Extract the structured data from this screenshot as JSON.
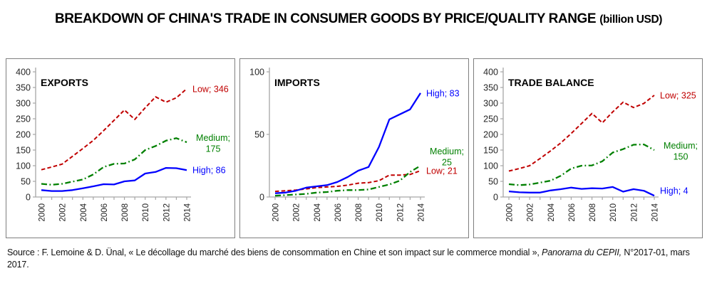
{
  "title": {
    "main": "BREAKDOWN OF CHINA'S TRADE IN CONSUMER GOODS BY PRICE/QUALITY RANGE",
    "unit": "(billion USD)"
  },
  "source": {
    "text1": "Source : F. Lemoine & D. Ünal, « Le décollage du marché des biens de consommation en Chine et son impact sur le commerce mondial », ",
    "italic": "Panorama du CEPII,",
    "text2": " N°2017-01, mars 2017."
  },
  "colors": {
    "low": "#c00000",
    "medium": "#008000",
    "high": "#0000ff",
    "axis": "#a6a6a6",
    "tick_text": "#262626"
  },
  "chart_data": [
    {
      "type": "line",
      "name": "exports",
      "title": "EXPORTS",
      "x": [
        2000,
        2001,
        2002,
        2003,
        2004,
        2005,
        2006,
        2007,
        2008,
        2009,
        2010,
        2011,
        2012,
        2013,
        2014
      ],
      "x_labels": [
        "2000",
        "2002",
        "2004",
        "2006",
        "2008",
        "2010",
        "2012",
        "2014"
      ],
      "ylim": [
        0,
        400
      ],
      "yticks": [
        0,
        50,
        100,
        150,
        200,
        250,
        300,
        350,
        400
      ],
      "grid": false,
      "series": [
        {
          "name": "Low",
          "color": "#c00000",
          "style": "dashed",
          "values": [
            87,
            96,
            105,
            130,
            155,
            181,
            212,
            245,
            278,
            248,
            285,
            320,
            303,
            317,
            346
          ],
          "label_lines": [
            "Low; 346"
          ]
        },
        {
          "name": "Medium",
          "color": "#008000",
          "style": "dashdot",
          "values": [
            42,
            39,
            42,
            49,
            56,
            72,
            96,
            106,
            107,
            120,
            150,
            163,
            180,
            188,
            175
          ],
          "label_lines": [
            "Medium;",
            "175"
          ]
        },
        {
          "name": "High",
          "color": "#0000ff",
          "style": "solid",
          "values": [
            22,
            19,
            19,
            22,
            28,
            34,
            41,
            40,
            50,
            53,
            75,
            80,
            93,
            92,
            86
          ],
          "label_lines": [
            "High; 86"
          ]
        }
      ]
    },
    {
      "type": "line",
      "name": "imports",
      "title": "IMPORTS",
      "x": [
        2000,
        2001,
        2002,
        2003,
        2004,
        2005,
        2006,
        2007,
        2008,
        2009,
        2010,
        2011,
        2012,
        2013,
        2014
      ],
      "x_labels": [
        "2000",
        "2002",
        "2004",
        "2006",
        "2008",
        "2010",
        "2012",
        "2014"
      ],
      "ylim": [
        0,
        100
      ],
      "yticks": [
        0,
        50,
        100
      ],
      "grid": false,
      "series": [
        {
          "name": "Low",
          "color": "#c00000",
          "style": "dashed",
          "values": [
            4.5,
            5,
            5.5,
            6.5,
            7.5,
            8,
            8.5,
            9.5,
            11,
            11.5,
            13,
            17.5,
            17.5,
            18,
            21
          ],
          "label_lines": [
            "Low; 21"
          ]
        },
        {
          "name": "Medium",
          "color": "#008000",
          "style": "dashdot",
          "values": [
            1,
            1.5,
            2,
            2.5,
            3.5,
            4,
            5,
            5.5,
            5.5,
            6,
            8,
            10,
            13,
            20,
            25
          ],
          "label_lines": [
            "Medium;",
            "25"
          ],
          "label_offset": -14
        },
        {
          "name": "High",
          "color": "#0000ff",
          "style": "solid",
          "values": [
            3,
            3.5,
            5,
            7.5,
            8.5,
            9.5,
            12,
            16,
            21,
            24,
            40,
            62,
            66,
            70,
            83
          ],
          "label_lines": [
            "High; 83"
          ]
        }
      ]
    },
    {
      "type": "line",
      "name": "trade-balance",
      "title": "TRADE BALANCE",
      "x": [
        2000,
        2001,
        2002,
        2003,
        2004,
        2005,
        2006,
        2007,
        2008,
        2009,
        2010,
        2011,
        2012,
        2013,
        2014
      ],
      "x_labels": [
        "2000",
        "2002",
        "2004",
        "2006",
        "2008",
        "2010",
        "2012",
        "2014"
      ],
      "ylim": [
        0,
        400
      ],
      "yticks": [
        0,
        50,
        100,
        150,
        200,
        250,
        300,
        350,
        400
      ],
      "grid": false,
      "series": [
        {
          "name": "Low",
          "color": "#c00000",
          "style": "dashed",
          "values": [
            83,
            91,
            100,
            123,
            147,
            173,
            203,
            235,
            267,
            237,
            272,
            303,
            286,
            299,
            325
          ],
          "label_lines": [
            "Low; 325"
          ]
        },
        {
          "name": "Medium",
          "color": "#008000",
          "style": "dashdot",
          "values": [
            41,
            38,
            40,
            46,
            52,
            68,
            91,
            100,
            101,
            114,
            142,
            153,
            167,
            168,
            150
          ],
          "label_lines": [
            "Medium;",
            "150"
          ]
        },
        {
          "name": "High",
          "color": "#0000ff",
          "style": "solid",
          "values": [
            18,
            15,
            14,
            14,
            21,
            25,
            30,
            26,
            28,
            27,
            32,
            17,
            25,
            20,
            4
          ],
          "label_lines": [
            "High; 4"
          ],
          "label_offset": -7
        }
      ]
    }
  ]
}
